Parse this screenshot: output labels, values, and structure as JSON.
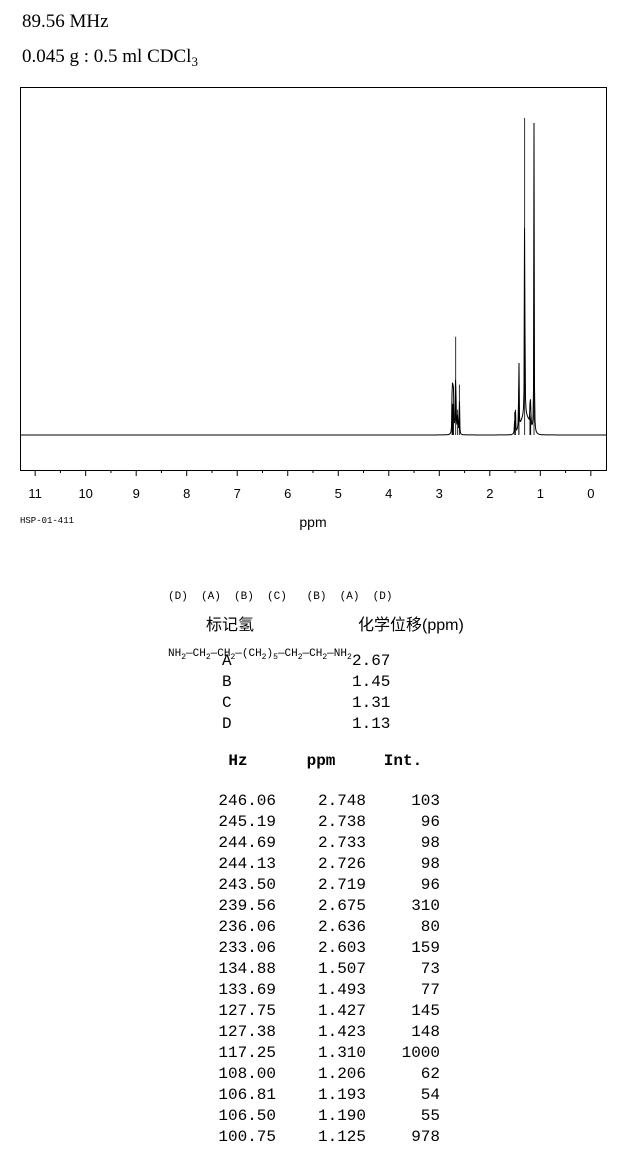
{
  "header": {
    "frequency": "89.56 MHz",
    "sample_main": "0.045 g : 0.5 ml CDCl",
    "sample_sub": "3"
  },
  "chart_data": {
    "type": "line",
    "title": "",
    "xlabel": "ppm",
    "ylabel": "",
    "xlim": [
      11.3,
      -0.3
    ],
    "x_reversed": true,
    "x_ticks": [
      "11",
      "10",
      "9",
      "8",
      "7",
      "6",
      "5",
      "4",
      "3",
      "2",
      "1",
      "0"
    ],
    "grid": false,
    "line_color": "#000000",
    "peaks": [
      {
        "hz": 246.06,
        "ppm": 2.748,
        "int": 103
      },
      {
        "hz": 245.19,
        "ppm": 2.738,
        "int": 96
      },
      {
        "hz": 244.69,
        "ppm": 2.733,
        "int": 98
      },
      {
        "hz": 244.13,
        "ppm": 2.726,
        "int": 98
      },
      {
        "hz": 243.5,
        "ppm": 2.719,
        "int": 96
      },
      {
        "hz": 239.56,
        "ppm": 2.675,
        "int": 310
      },
      {
        "hz": 236.06,
        "ppm": 2.636,
        "int": 80
      },
      {
        "hz": 233.06,
        "ppm": 2.603,
        "int": 159
      },
      {
        "hz": 134.88,
        "ppm": 1.507,
        "int": 73
      },
      {
        "hz": 133.69,
        "ppm": 1.493,
        "int": 77
      },
      {
        "hz": 127.75,
        "ppm": 1.427,
        "int": 145
      },
      {
        "hz": 127.38,
        "ppm": 1.423,
        "int": 148
      },
      {
        "hz": 117.25,
        "ppm": 1.31,
        "int": 1000
      },
      {
        "hz": 108.0,
        "ppm": 1.206,
        "int": 62
      },
      {
        "hz": 106.81,
        "ppm": 1.193,
        "int": 54
      },
      {
        "hz": 106.5,
        "ppm": 1.19,
        "int": 55
      },
      {
        "hz": 100.75,
        "ppm": 1.125,
        "int": 978
      }
    ]
  },
  "spectrum_code": "HSP-01-411",
  "structure": {
    "labels": "(D)  (A)  (B)  (C)   (B)  (A)  (D)",
    "formula_parts": [
      "NH",
      "2",
      "—CH",
      "2",
      "—CH",
      "2",
      "—(CH",
      "2",
      ")",
      "5",
      "—CH",
      "2",
      "—CH",
      "2",
      "—NH",
      "2"
    ]
  },
  "assignment": {
    "col1_header": "标记氢",
    "col2_header": "化学位移(ppm)",
    "rows": [
      {
        "label": "A",
        "shift": "2.67"
      },
      {
        "label": "B",
        "shift": "1.45"
      },
      {
        "label": "C",
        "shift": "1.31"
      },
      {
        "label": "D",
        "shift": "1.13"
      }
    ]
  },
  "peak_table": {
    "headers": [
      "Hz",
      "ppm",
      "Int."
    ],
    "rows": [
      [
        "246.06",
        "2.748",
        "103"
      ],
      [
        "245.19",
        "2.738",
        "96"
      ],
      [
        "244.69",
        "2.733",
        "98"
      ],
      [
        "244.13",
        "2.726",
        "98"
      ],
      [
        "243.50",
        "2.719",
        "96"
      ],
      [
        "239.56",
        "2.675",
        "310"
      ],
      [
        "236.06",
        "2.636",
        "80"
      ],
      [
        "233.06",
        "2.603",
        "159"
      ],
      [
        "134.88",
        "1.507",
        "73"
      ],
      [
        "133.69",
        "1.493",
        "77"
      ],
      [
        "127.75",
        "1.427",
        "145"
      ],
      [
        "127.38",
        "1.423",
        "148"
      ],
      [
        "117.25",
        "1.310",
        "1000"
      ],
      [
        "108.00",
        "1.206",
        "62"
      ],
      [
        "106.81",
        "1.193",
        "54"
      ],
      [
        "106.50",
        "1.190",
        "55"
      ],
      [
        "100.75",
        "1.125",
        "978"
      ]
    ]
  }
}
